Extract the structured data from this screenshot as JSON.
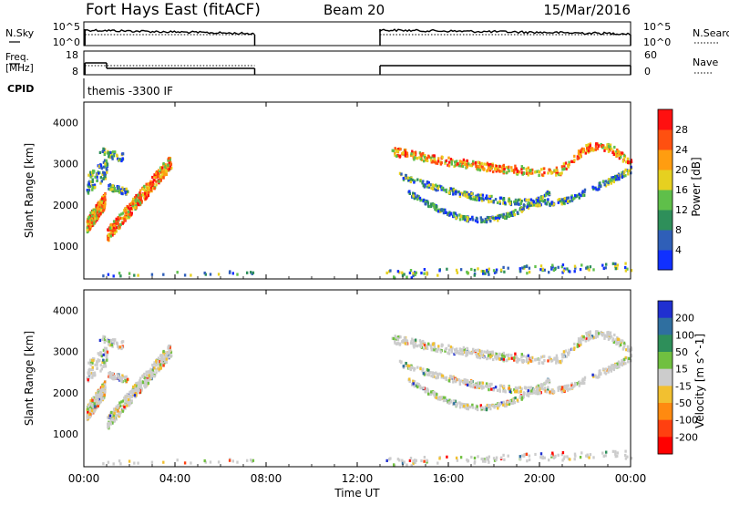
{
  "header": {
    "station": "Fort Hays East (fitACF)",
    "beam": "Beam 20",
    "date": "15/Mar/2016"
  },
  "cpid_text": "themis -3300 IF",
  "side_labels": {
    "nsky": "N.Sky",
    "freq_line1": "Freq.",
    "freq_line2": "[MHz]",
    "cpid": "CPID",
    "nsearch": "N.Search",
    "nave": "Nave"
  },
  "chart_data": [
    {
      "type": "line",
      "name": "noise",
      "left_ticks": [
        "10^5",
        "10^0"
      ],
      "right_ticks": [
        "10^5",
        "10^0"
      ],
      "segments_hours": [
        [
          0.05,
          7.5
        ],
        [
          13.0,
          24.0
        ]
      ]
    },
    {
      "type": "line",
      "name": "frequency",
      "left_ticks": [
        "18",
        "8"
      ],
      "right_ticks": [
        "60",
        "0"
      ],
      "freq_mhz": [
        [
          0.05,
          1.0,
          14.5
        ],
        [
          1.0,
          7.5,
          11.5
        ],
        [
          13.0,
          24.0,
          13.0
        ]
      ],
      "segments_hours": [
        [
          0.05,
          7.5
        ],
        [
          13.0,
          24.0
        ]
      ]
    },
    {
      "type": "scatter",
      "name": "power",
      "ylabel": "Slant Range [km]",
      "ylim": [
        200,
        4500
      ],
      "yticks": [
        "1000",
        "2000",
        "3000",
        "4000"
      ],
      "colorbar": {
        "label": "Power [dB]",
        "ticks": [
          "4",
          "8",
          "12",
          "16",
          "20",
          "24",
          "28"
        ],
        "colors": [
          "#1030ff",
          "#2f5fb8",
          "#2e8f5a",
          "#5fbf4a",
          "#e6d020",
          "#ff9d10",
          "#ff5010",
          "#ff1010"
        ]
      }
    },
    {
      "type": "scatter",
      "name": "velocity",
      "ylabel": "Slant Range [km]",
      "ylim": [
        200,
        4500
      ],
      "yticks": [
        "1000",
        "2000",
        "3000",
        "4000"
      ],
      "xlabel": "Time UT",
      "xticks": [
        "00:00",
        "04:00",
        "08:00",
        "12:00",
        "16:00",
        "20:00",
        "00:00"
      ],
      "xlim_hours": [
        0,
        24
      ],
      "colorbar": {
        "label": "Velocity [m s^-1]",
        "ticks": [
          "200",
          "100",
          "50",
          "15",
          "-15",
          "-50",
          "-100",
          "-200"
        ],
        "colors": [
          "#2030d0",
          "#2f6fa0",
          "#2e8f5a",
          "#70c040",
          "#cccccc",
          "#f2c030",
          "#ff8a10",
          "#ff4010",
          "#ff0000"
        ]
      }
    }
  ]
}
